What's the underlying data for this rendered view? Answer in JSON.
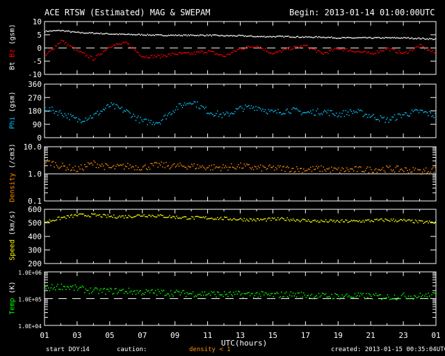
{
  "header": {
    "title": "ACE RTSW (Estimated) MAG & SWEPAM",
    "begin": "Begin: 2013-01-14 01:00:00UTC"
  },
  "footer": {
    "start_doy_label": "start DOY:",
    "start_doy": "14",
    "caution_label": "caution:",
    "caution_value": "density < 1",
    "created": "created: 2013-01-15 00:35:04UTC"
  },
  "colors": {
    "bt": "#ffffff",
    "bz": "#ff0000",
    "phi": "#00c8ff",
    "density": "#ff8c00",
    "speed": "#ffff00",
    "temp": "#00ff00"
  },
  "chart_data": {
    "type": "scatter",
    "xlabel": "UTC(hours)",
    "x_hours": [
      0,
      1,
      2,
      3,
      4,
      5,
      6,
      7,
      8,
      9,
      10,
      11,
      12,
      13,
      14,
      15,
      16,
      17,
      18,
      19,
      20,
      21,
      22,
      23,
      24
    ],
    "x_tick_labels": [
      "01",
      "03",
      "05",
      "07",
      "09",
      "11",
      "13",
      "15",
      "17",
      "19",
      "21",
      "23",
      "01"
    ],
    "panels": [
      {
        "name": "bt-bz",
        "ylabel_parts": [
          "Bt",
          "Bz",
          "(gsm)"
        ],
        "scale": "linear",
        "ylim": [
          -10,
          10
        ],
        "ticks": [
          "10",
          "5",
          "0",
          "-5",
          "-10"
        ],
        "tick_values": [
          10,
          5,
          0,
          -5,
          -10
        ],
        "ref_line": 0,
        "ref_style": "dashed",
        "series": [
          {
            "name": "Bt",
            "color_key": "bt",
            "values": [
              6.5,
              6.8,
              6,
              5.8,
              5.5,
              5.3,
              5.2,
              5,
              5,
              5,
              5,
              4.8,
              4.8,
              4.5,
              4.5,
              4.5,
              4.3,
              4.3,
              4,
              4,
              4,
              4,
              4,
              3.8,
              3.5
            ]
          },
          {
            "name": "Bz",
            "color_key": "bz",
            "values": [
              -3,
              3,
              -1,
              -4,
              1,
              2,
              -3,
              -3,
              -2,
              -2,
              -1,
              -3,
              0,
              1,
              -2,
              0,
              1,
              -2,
              0,
              -1,
              -2,
              0,
              -2,
              1,
              -2
            ]
          }
        ]
      },
      {
        "name": "phi",
        "ylabel_parts": [
          "Phi",
          "(gsm)"
        ],
        "scale": "linear",
        "ylim": [
          0,
          360
        ],
        "ticks": [
          "360",
          "270",
          "180",
          "90",
          "0"
        ],
        "tick_values": [
          360,
          270,
          180,
          90,
          0
        ],
        "series": [
          {
            "name": "Phi",
            "color_key": "phi",
            "values": [
              200,
              170,
              120,
              150,
              220,
              180,
              110,
              110,
              200,
              250,
              180,
              150,
              200,
              210,
              170,
              190,
              170,
              180,
              160,
              180,
              150,
              120,
              160,
              180,
              150
            ]
          }
        ]
      },
      {
        "name": "density",
        "ylabel_parts": [
          "Density",
          "(/cm3)"
        ],
        "scale": "log",
        "ylim": [
          0.1,
          10
        ],
        "ticks": [
          "10.0",
          "1.0",
          "0.1"
        ],
        "tick_values": [
          10,
          1,
          0.1
        ],
        "ref_line": 1,
        "ref_style": "solid",
        "series": [
          {
            "name": "Density",
            "color_key": "density",
            "values": [
              3,
              2,
              1.5,
              2.5,
              1.7,
              2,
              1.8,
              2.2,
              2,
              2,
              1.8,
              1.8,
              2,
              1.7,
              1.7,
              1.6,
              1.5,
              1.6,
              1.4,
              1.5,
              1.5,
              1.6,
              1.5,
              1.3,
              1.5
            ]
          }
        ]
      },
      {
        "name": "speed",
        "ylabel_parts": [
          "Speed",
          "(km/s)"
        ],
        "scale": "linear",
        "ylim": [
          200,
          600
        ],
        "ticks": [
          "600",
          "500",
          "400",
          "300",
          "200"
        ],
        "tick_values": [
          600,
          500,
          400,
          300,
          200
        ],
        "series": [
          {
            "name": "Speed",
            "color_key": "speed",
            "values": [
              510,
              540,
              560,
              560,
              550,
              550,
              560,
              555,
              545,
              540,
              540,
              535,
              530,
              525,
              530,
              530,
              520,
              515,
              515,
              515,
              520,
              525,
              520,
              510,
              505
            ]
          }
        ]
      },
      {
        "name": "temp",
        "ylabel_parts": [
          "Temp",
          "(K)"
        ],
        "scale": "log",
        "ylim": [
          10000,
          1000000
        ],
        "ticks": [
          "1.0E+06",
          "1.0E+05",
          "1.0E+04"
        ],
        "tick_values": [
          1000000,
          100000,
          10000
        ],
        "ref_line": 100000,
        "ref_style": "dashed",
        "series": [
          {
            "name": "Temp",
            "color_key": "temp",
            "values": [
              250000,
              300000,
              250000,
              200000,
              200000,
              200000,
              180000,
              180000,
              170000,
              160000,
              160000,
              150000,
              150000,
              150000,
              140000,
              150000,
              140000,
              130000,
              130000,
              130000,
              130000,
              120000,
              130000,
              130000,
              140000
            ]
          }
        ]
      }
    ]
  }
}
